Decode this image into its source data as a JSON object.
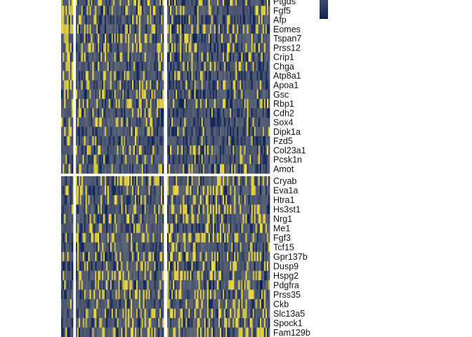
{
  "chart_data": {
    "type": "heatmap",
    "title": "",
    "xlabel": "",
    "ylabel": "",
    "grid": false,
    "colors": {
      "low": "#0d2257",
      "mid": "#5d6577",
      "high": "#f4dd39"
    },
    "color_scale": [
      0,
      1
    ],
    "legend": "top-right (color bar, partially visible)",
    "column_groups": [
      {
        "cells": 8,
        "top_block_mean": 0.82,
        "bottom_block_mean": 0.3
      },
      {
        "cells": 64,
        "top_block_mean": 0.42,
        "bottom_block_mean": 0.55
      },
      {
        "cells": 72,
        "top_block_mean": 0.28,
        "bottom_block_mean": 0.58
      }
    ],
    "row_blocks": [
      {
        "genes": [
          "Ptgds",
          "Fgf5",
          "Afp",
          "Eomes",
          "Tspan7",
          "Prss12",
          "Crip1",
          "Chga",
          "Atp8a1",
          "Apoa1",
          "Gsc",
          "Rbp1",
          "Cdh2",
          "Sox4",
          "Dipk1a",
          "Fzd5",
          "Col23a1",
          "Pcsk1n",
          "Amot"
        ]
      },
      {
        "genes": [
          "Cryab",
          "Eva1a",
          "Htra1",
          "Hs3st1",
          "Nrg1",
          "Me1",
          "Fgf3",
          "Tcf15",
          "Gpr137b",
          "Dusp9",
          "Hspg2",
          "Pdgfra",
          "Prss35",
          "Ckb",
          "Slc13a5",
          "Spock1",
          "Fam129b"
        ]
      }
    ]
  }
}
